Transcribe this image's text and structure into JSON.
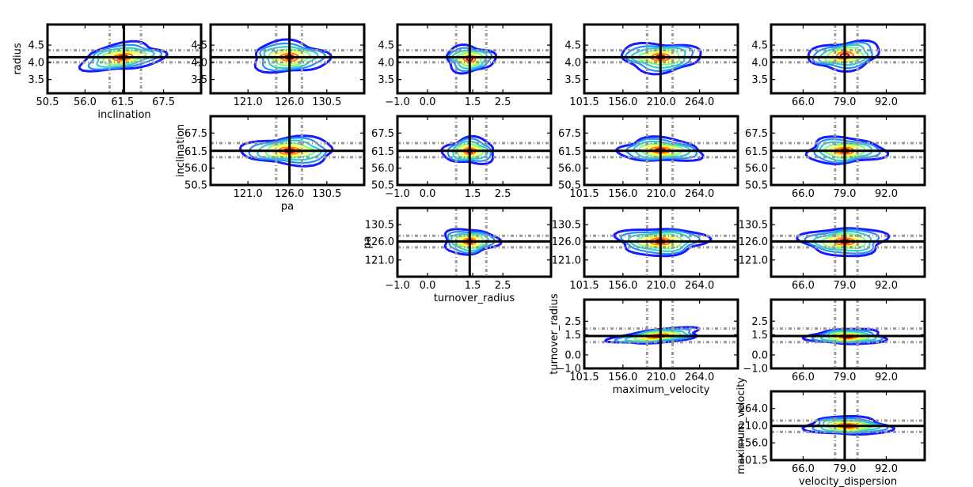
{
  "chart_data": {
    "type": "corner-contour",
    "grid": false,
    "legend": "none",
    "colors": {
      "frame": "#000000",
      "truth_line": "#000000",
      "quantile_line": "#999999",
      "contours": [
        "#1a1aff",
        "#1e90ff",
        "#33cccc",
        "#7fff7f",
        "#ffff33",
        "#ff8000",
        "#e60000"
      ]
    },
    "parameters": [
      {
        "key": "radius",
        "label": "radius",
        "range": [
          3.1,
          5.1
        ],
        "ticks": [
          3.5,
          4.0,
          4.5
        ],
        "tick_labels": [
          "3.5",
          "4.0",
          "4.5"
        ],
        "truth": 4.15,
        "quantiles": [
          4.0,
          4.35
        ]
      },
      {
        "key": "inclination",
        "label": "inclination",
        "range": [
          50.5,
          73.0
        ],
        "ticks": [
          50.5,
          56.0,
          61.5,
          67.5
        ],
        "tick_labels": [
          "50.5",
          "56.0",
          "61.5",
          "67.5"
        ],
        "truth": 61.7,
        "quantiles": [
          59.6,
          64.2
        ]
      },
      {
        "key": "pa",
        "label": "pa",
        "range": [
          116.5,
          135.0
        ],
        "ticks": [
          121.0,
          126.0,
          130.5
        ],
        "tick_labels": [
          "121.0",
          "126.0",
          "130.5"
        ],
        "truth": 126.0,
        "quantiles": [
          124.4,
          127.5
        ]
      },
      {
        "key": "turnover_radius",
        "label": "turnover_radius",
        "range": [
          -1.0,
          4.1
        ],
        "ticks": [
          -1.0,
          0.0,
          1.5,
          2.5
        ],
        "tick_labels": [
          "−1.0",
          "0.0",
          "1.5",
          "2.5"
        ],
        "truth": 1.4,
        "quantiles": [
          0.95,
          1.95
        ]
      },
      {
        "key": "maximum_velocity",
        "label": "maximum_velocity",
        "range": [
          101.5,
          318.0
        ],
        "ticks": [
          101.5,
          156.0,
          210.0,
          264.0
        ],
        "tick_labels": [
          "101.5",
          "156.0",
          "210.0",
          "264.0"
        ],
        "truth": 209.0,
        "quantiles": [
          190.0,
          226.0
        ]
      },
      {
        "key": "velocity_dispersion",
        "label": "velocity_dispersion",
        "range": [
          56.0,
          104.0
        ],
        "ticks": [
          66.0,
          79.0,
          92.0
        ],
        "tick_labels": [
          "66.0",
          "79.0",
          "92.0"
        ],
        "truth": 79.0,
        "quantiles": [
          76.0,
          83.0
        ]
      }
    ],
    "panels": [
      {
        "x": "inclination",
        "y": "radius",
        "center": [
          61.5,
          4.15
        ],
        "spread": [
          6.0,
          0.38
        ],
        "tilt": 0.35
      },
      {
        "x": "pa",
        "y": "radius",
        "center": [
          126.0,
          4.15
        ],
        "spread": [
          4.5,
          0.45
        ],
        "tilt": 0.0
      },
      {
        "x": "turnover_radius",
        "y": "radius",
        "center": [
          1.4,
          4.1
        ],
        "spread": [
          0.8,
          0.38
        ],
        "tilt": 0.0
      },
      {
        "x": "maximum_velocity",
        "y": "radius",
        "center": [
          209.0,
          4.15
        ],
        "spread": [
          55.0,
          0.42
        ],
        "tilt": 0.0
      },
      {
        "x": "velocity_dispersion",
        "y": "radius",
        "center": [
          79.0,
          4.2
        ],
        "spread": [
          11.0,
          0.4
        ],
        "tilt": 0.2
      },
      {
        "x": "pa",
        "y": "inclination",
        "center": [
          126.0,
          61.7
        ],
        "spread": [
          5.5,
          4.5
        ],
        "tilt": 0.0
      },
      {
        "x": "turnover_radius",
        "y": "inclination",
        "center": [
          1.4,
          61.6
        ],
        "spread": [
          0.85,
          4.2
        ],
        "tilt": 0.0
      },
      {
        "x": "maximum_velocity",
        "y": "inclination",
        "center": [
          209.0,
          61.9
        ],
        "spread": [
          58.0,
          3.8
        ],
        "tilt": -0.1
      },
      {
        "x": "velocity_dispersion",
        "y": "inclination",
        "center": [
          79.0,
          61.7
        ],
        "spread": [
          12.0,
          4.2
        ],
        "tilt": 0.0
      },
      {
        "x": "turnover_radius",
        "y": "pa",
        "center": [
          1.4,
          126.0
        ],
        "spread": [
          0.9,
          3.3
        ],
        "tilt": 0.0
      },
      {
        "x": "maximum_velocity",
        "y": "pa",
        "center": [
          209.0,
          126.0
        ],
        "spread": [
          62.0,
          3.6
        ],
        "tilt": 0.0
      },
      {
        "x": "velocity_dispersion",
        "y": "pa",
        "center": [
          79.0,
          126.0
        ],
        "spread": [
          13.0,
          3.7
        ],
        "tilt": 0.0
      },
      {
        "x": "maximum_velocity",
        "y": "turnover_radius",
        "center": [
          205.0,
          1.4
        ],
        "spread": [
          62.0,
          0.5
        ],
        "tilt": 0.6
      },
      {
        "x": "velocity_dispersion",
        "y": "turnover_radius",
        "center": [
          80.0,
          1.35
        ],
        "spread": [
          12.0,
          0.55
        ],
        "tilt": 0.0
      },
      {
        "x": "velocity_dispersion",
        "y": "maximum_velocity",
        "center": [
          80.0,
          209.0
        ],
        "spread": [
          13.0,
          28.0
        ],
        "tilt": -0.1
      }
    ]
  }
}
